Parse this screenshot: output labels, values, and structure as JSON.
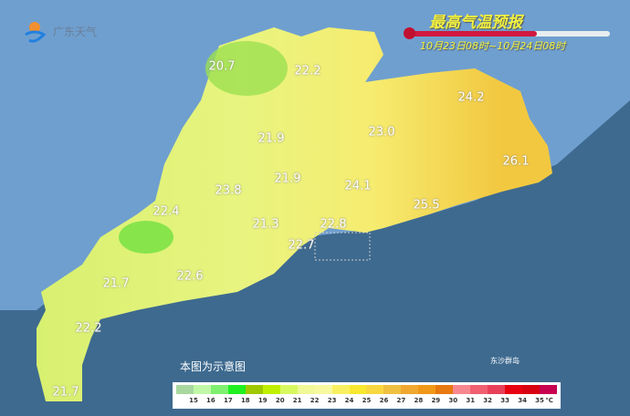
{
  "logo": {
    "text": "广东天气"
  },
  "header": {
    "title": "最高气温预报",
    "period": "10月23日08时~10月24日08时"
  },
  "note": "本图为示意图",
  "islands": "东沙群岛",
  "temperatures": [
    {
      "value": "20.7",
      "place": "north-west"
    },
    {
      "value": "22.2",
      "place": "north"
    },
    {
      "value": "24.2",
      "place": "north-east"
    },
    {
      "value": "21.9",
      "place": "north-central"
    },
    {
      "value": "23.0",
      "place": "east-central"
    },
    {
      "value": "26.1",
      "place": "east coast"
    },
    {
      "value": "21.9",
      "place": "central"
    },
    {
      "value": "24.1",
      "place": "central-east"
    },
    {
      "value": "23.8",
      "place": "west-central"
    },
    {
      "value": "25.5",
      "place": "east coast south"
    },
    {
      "value": "22.4",
      "place": "west"
    },
    {
      "value": "21.3",
      "place": "pearl river"
    },
    {
      "value": "22.8",
      "place": "pearl river east"
    },
    {
      "value": "22.7",
      "place": "pearl river south"
    },
    {
      "value": "21.7",
      "place": "south-west"
    },
    {
      "value": "22.6",
      "place": "south coast"
    },
    {
      "value": "22.2",
      "place": "leizhou"
    },
    {
      "value": "21.7",
      "place": "leizhou south"
    }
  ],
  "legend": {
    "ticks": [
      "15",
      "16",
      "17",
      "18",
      "19",
      "20",
      "21",
      "22",
      "23",
      "24",
      "25",
      "26",
      "27",
      "28",
      "29",
      "30",
      "31",
      "32",
      "33",
      "34",
      "35"
    ],
    "unit": "℃",
    "colors": [
      "#a8d8a0",
      "#c0f8a8",
      "#80f070",
      "#20f020",
      "#a0c800",
      "#c0f000",
      "#d8f860",
      "#f0f898",
      "#f8f8a0",
      "#f8f060",
      "#f8e830",
      "#f8d840",
      "#f0c040",
      "#f0a830",
      "#f09818",
      "#e87810",
      "#f88890",
      "#f06070",
      "#e84058",
      "#e80010",
      "#d80010",
      "#c80050"
    ]
  },
  "colors": {
    "sea": "#3e6a8f",
    "land_other": "#6f9fcf",
    "title": "#f0f040"
  },
  "thermometer_fill_percent": 64
}
